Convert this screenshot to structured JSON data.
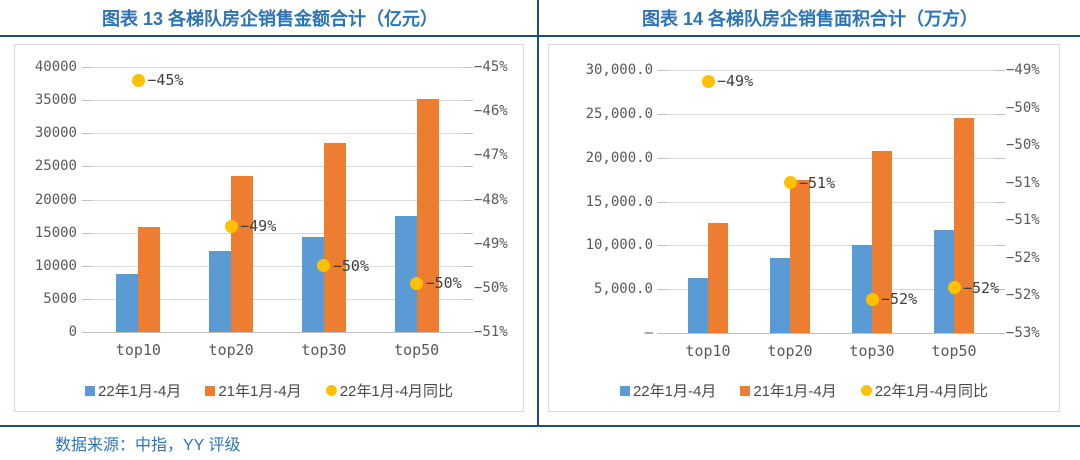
{
  "source_note": "数据来源：中指，YY 评级",
  "colors": {
    "bar_2022_blue": "#5B9BD5",
    "bar_2021_orange": "#ED7D31",
    "yoy_yellow": "#FFC000",
    "title_blue": "#2E74B5",
    "rule_navy": "#1F4E79"
  },
  "chart_data": [
    {
      "type": "bar",
      "title": "图表 13 各梯队房企销售金额合计（亿元）",
      "categories": [
        "top10",
        "top20",
        "top30",
        "top50"
      ],
      "series": [
        {
          "name": "22年1月-4月",
          "kind": "bar",
          "color": "#5B9BD5",
          "values": [
            8700,
            12200,
            14400,
            17500
          ]
        },
        {
          "name": "21年1月-4月",
          "kind": "bar",
          "color": "#ED7D31",
          "values": [
            15900,
            23600,
            28600,
            35100
          ]
        },
        {
          "name": "22年1月-4月同比",
          "kind": "scatter",
          "axis": "right",
          "color": "#FFC000",
          "values": [
            -45.3,
            -48.6,
            -49.5,
            -49.9
          ],
          "labels": [
            "−45%",
            "−49%",
            "−50%",
            "−50%"
          ]
        }
      ],
      "left_axis": {
        "min": 0,
        "max": 40000,
        "ticks": [
          "40000",
          "35000",
          "30000",
          "25000",
          "20000",
          "15000",
          "10000",
          "5000",
          "0"
        ]
      },
      "right_axis": {
        "min": -51,
        "max": -45,
        "ticks": [
          "−45%",
          "−46%",
          "−47%",
          "−48%",
          "−49%",
          "−50%",
          "−51%"
        ]
      },
      "grid": true,
      "legend_position": "bottom"
    },
    {
      "type": "bar",
      "title": "图表 14 各梯队房企销售面积合计（万方）",
      "categories": [
        "top10",
        "top20",
        "top30",
        "top50"
      ],
      "series": [
        {
          "name": "22年1月-4月",
          "kind": "bar",
          "color": "#5B9BD5",
          "values": [
            6300,
            8500,
            10000,
            11800
          ]
        },
        {
          "name": "21年1月-4月",
          "kind": "bar",
          "color": "#ED7D31",
          "values": [
            12500,
            17400,
            20800,
            24500
          ]
        },
        {
          "name": "22年1月-4月同比",
          "kind": "scatter",
          "axis": "right",
          "color": "#FFC000",
          "values": [
            -49.15,
            -50.5,
            -52.05,
            -51.9
          ],
          "labels": [
            "−49%",
            "−51%",
            "−52%",
            "−52%"
          ]
        }
      ],
      "left_axis": {
        "min": 0,
        "max": 30000,
        "ticks": [
          "30,000.0",
          "25,000.0",
          "20,000.0",
          "15,000.0",
          "10,000.0",
          "5,000.0",
          "–"
        ]
      },
      "right_axis": {
        "min": -52.5,
        "max": -49,
        "ticks": [
          "−49%",
          "−50%",
          "−50%",
          "−51%",
          "−51%",
          "−52%",
          "−52%",
          "−53%"
        ]
      },
      "grid": true,
      "legend_position": "bottom"
    }
  ]
}
